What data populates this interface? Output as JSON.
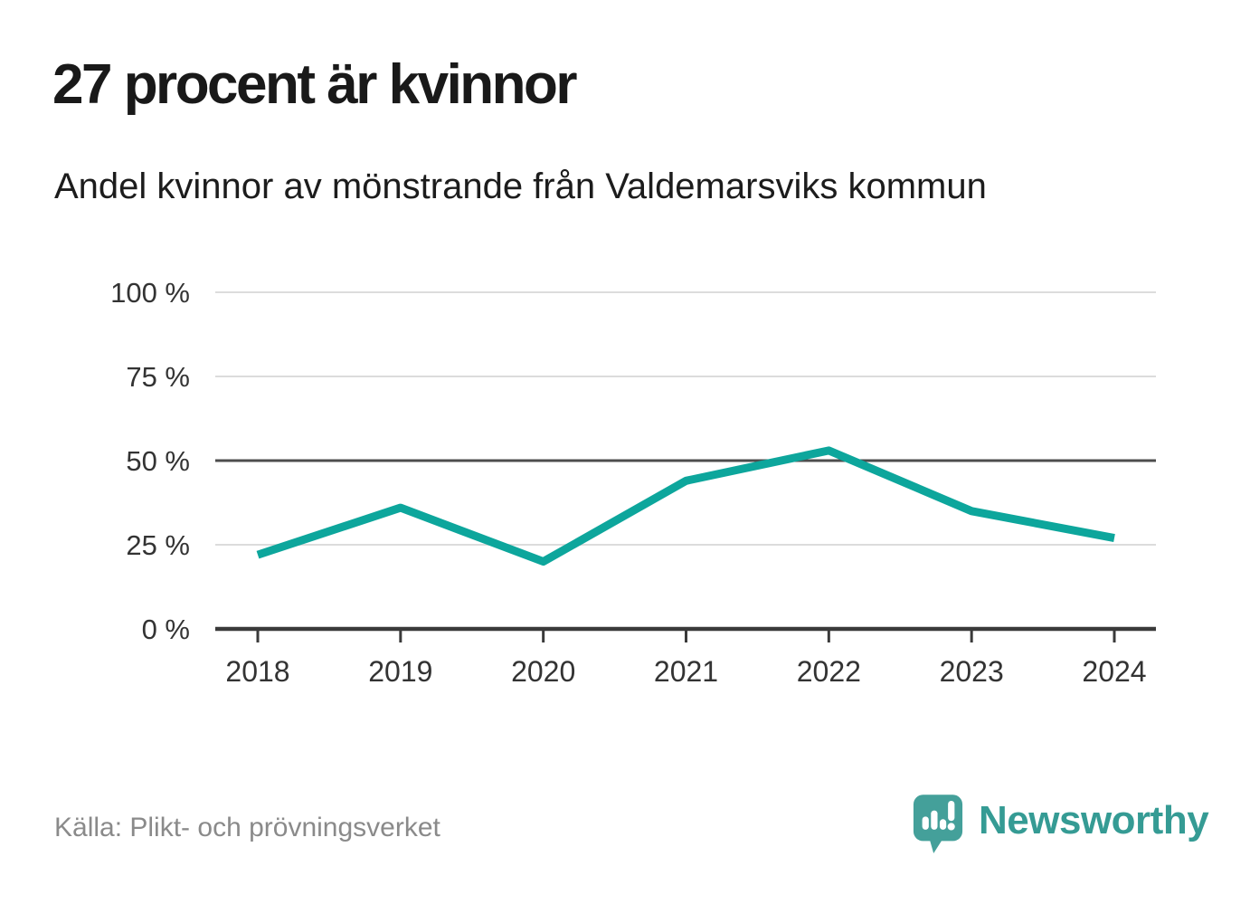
{
  "page": {
    "title": "27 procent är kvinnor",
    "subtitle": "Andel kvinnor av mönstrande från Valdemarsviks kommun",
    "source": "Källa: Plikt- och prövningsverket",
    "brand": "Newsworthy"
  },
  "colors": {
    "line": "#0da69c",
    "grid_light": "#dcdcdc",
    "grid_dark": "#4d4d4d",
    "axis": "#3a3a3a",
    "tick_label": "#333333",
    "source_text": "#8a8a8a",
    "brand_teal": "#359b94",
    "logo_icon_teal": "#44a09a"
  },
  "icons": {
    "logo": "newsworthy-speech-bubble-bar-chart-icon"
  },
  "chart_data": {
    "type": "line",
    "title": "27 procent är kvinnor",
    "subtitle": "Andel kvinnor av mönstrande från Valdemarsviks kommun",
    "x": [
      2018,
      2019,
      2020,
      2021,
      2022,
      2023,
      2024
    ],
    "series": [
      {
        "name": "Andel kvinnor av mönstrande",
        "values": [
          22,
          36,
          20,
          44,
          53,
          35,
          27
        ]
      }
    ],
    "xlabel": "",
    "ylabel": "%",
    "ylim": [
      0,
      100
    ],
    "yticks": [
      0,
      25,
      50,
      75,
      100
    ],
    "ytick_labels": [
      "0 %",
      "25 %",
      "50 %",
      "75 %",
      "100 %"
    ],
    "grid": "horizontal",
    "emphasized_gridline": 50,
    "legend": "none"
  }
}
